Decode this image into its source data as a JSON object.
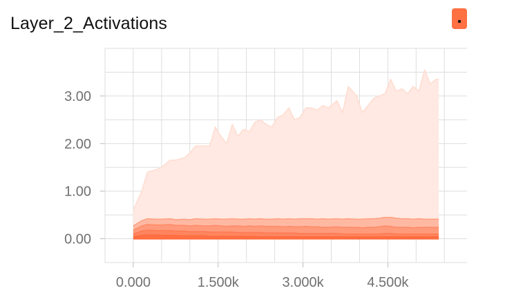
{
  "title": "Layer_2_Activations",
  "expand_icon": "dots-icon",
  "chart_data": {
    "type": "area",
    "title": "Layer_2_Activations",
    "xlabel": "",
    "ylabel": "",
    "xlim": [
      -500,
      5900
    ],
    "ylim": [
      -0.5,
      4.0
    ],
    "x_ticks": [
      0,
      1500,
      3000,
      4500
    ],
    "x_tick_labels": [
      "0.000",
      "1.500k",
      "3.000k",
      "4.500k"
    ],
    "y_ticks": [
      0,
      1,
      2,
      3
    ],
    "y_tick_labels": [
      "0.00",
      "1.00",
      "2.00",
      "3.00"
    ],
    "grid": true,
    "x": [
      0,
      150,
      250,
      400,
      500,
      650,
      750,
      900,
      1000,
      1100,
      1250,
      1350,
      1450,
      1550,
      1650,
      1750,
      1850,
      1950,
      2050,
      2150,
      2250,
      2350,
      2450,
      2550,
      2650,
      2750,
      2850,
      2950,
      3050,
      3150,
      3250,
      3350,
      3450,
      3600,
      3700,
      3800,
      3950,
      4050,
      4150,
      4250,
      4350,
      4450,
      4550,
      4650,
      4750,
      4850,
      4950,
      5050,
      5150,
      5250,
      5350,
      5400
    ],
    "series": [
      {
        "values": [
          0.6,
          1.0,
          1.4,
          1.45,
          1.5,
          1.65,
          1.65,
          1.7,
          1.8,
          1.95,
          1.95,
          1.95,
          2.35,
          2.15,
          2.0,
          2.4,
          2.15,
          2.3,
          2.25,
          2.45,
          2.5,
          2.4,
          2.35,
          2.55,
          2.6,
          2.75,
          2.5,
          2.55,
          2.75,
          2.75,
          2.7,
          2.8,
          2.75,
          2.9,
          2.65,
          3.2,
          3.0,
          2.65,
          2.8,
          2.95,
          3.0,
          3.05,
          3.35,
          3.1,
          3.15,
          3.05,
          3.2,
          3.1,
          3.55,
          3.25,
          3.35,
          3.35
        ]
      },
      {
        "values": [
          0.27,
          0.38,
          0.42,
          0.41,
          0.41,
          0.42,
          0.4,
          0.41,
          0.4,
          0.42,
          0.41,
          0.41,
          0.42,
          0.41,
          0.41,
          0.42,
          0.41,
          0.41,
          0.42,
          0.41,
          0.42,
          0.41,
          0.41,
          0.42,
          0.41,
          0.42,
          0.41,
          0.42,
          0.42,
          0.42,
          0.41,
          0.42,
          0.41,
          0.42,
          0.41,
          0.42,
          0.41,
          0.41,
          0.42,
          0.42,
          0.43,
          0.45,
          0.45,
          0.43,
          0.42,
          0.42,
          0.41,
          0.42,
          0.41,
          0.41,
          0.41,
          0.41
        ]
      },
      {
        "values": [
          0.18,
          0.27,
          0.3,
          0.29,
          0.29,
          0.3,
          0.28,
          0.28,
          0.27,
          0.28,
          0.27,
          0.27,
          0.28,
          0.27,
          0.26,
          0.27,
          0.27,
          0.26,
          0.27,
          0.26,
          0.27,
          0.26,
          0.26,
          0.26,
          0.25,
          0.26,
          0.25,
          0.25,
          0.26,
          0.25,
          0.25,
          0.24,
          0.24,
          0.25,
          0.24,
          0.24,
          0.24,
          0.23,
          0.24,
          0.24,
          0.25,
          0.27,
          0.26,
          0.24,
          0.24,
          0.24,
          0.23,
          0.24,
          0.24,
          0.24,
          0.24,
          0.24
        ]
      },
      {
        "values": [
          0.1,
          0.16,
          0.18,
          0.17,
          0.17,
          0.17,
          0.16,
          0.16,
          0.15,
          0.15,
          0.15,
          0.14,
          0.14,
          0.14,
          0.14,
          0.14,
          0.13,
          0.13,
          0.13,
          0.13,
          0.13,
          0.12,
          0.12,
          0.12,
          0.12,
          0.12,
          0.12,
          0.11,
          0.11,
          0.11,
          0.11,
          0.11,
          0.11,
          0.11,
          0.1,
          0.1,
          0.1,
          0.1,
          0.1,
          0.1,
          0.1,
          0.11,
          0.11,
          0.1,
          0.1,
          0.1,
          0.1,
          0.1,
          0.1,
          0.1,
          0.1,
          0.1
        ]
      },
      {
        "values": [
          0.04,
          0.07,
          0.08,
          0.08,
          0.07,
          0.07,
          0.07,
          0.06,
          0.06,
          0.06,
          0.06,
          0.05,
          0.05,
          0.05,
          0.05,
          0.05,
          0.05,
          0.05,
          0.05,
          0.05,
          0.04,
          0.04,
          0.04,
          0.04,
          0.04,
          0.04,
          0.04,
          0.04,
          0.04,
          0.04,
          0.04,
          0.04,
          0.04,
          0.04,
          0.04,
          0.04,
          0.04,
          0.04,
          0.04,
          0.04,
          0.04,
          0.04,
          0.04,
          0.04,
          0.04,
          0.04,
          0.04,
          0.04,
          0.04,
          0.04,
          0.04,
          0.04
        ]
      },
      {
        "values": [
          0.0,
          0.0,
          0.0,
          0.0,
          0.0,
          0.0,
          0.0,
          0.0,
          0.0,
          0.0,
          0.0,
          0.0,
          0.0,
          0.0,
          0.0,
          0.0,
          0.0,
          0.0,
          0.0,
          0.0,
          0.0,
          0.0,
          0.0,
          0.0,
          0.0,
          0.0,
          0.0,
          0.0,
          0.0,
          0.0,
          0.0,
          0.0,
          0.0,
          0.0,
          0.0,
          0.0,
          0.0,
          0.0,
          0.0,
          0.0,
          0.0,
          0.0,
          0.0,
          0.0,
          0.0,
          0.0,
          0.0,
          0.0,
          0.0,
          0.0,
          0.0,
          0.0
        ]
      }
    ],
    "band_colors": [
      "#ffe9e2",
      "#ffb9a3",
      "#ff9a7b",
      "#ff8560",
      "#ff7043"
    ],
    "line_colors": [
      "#ffdcd0",
      "#ff9f80",
      "#ff8a66",
      "#ff7a52",
      "#ff6a3d"
    ],
    "accent_color": "#ff7043",
    "grid_color": "#dddddd",
    "tick_color": "#bbbbbb",
    "tick_label_color": "#707070"
  }
}
